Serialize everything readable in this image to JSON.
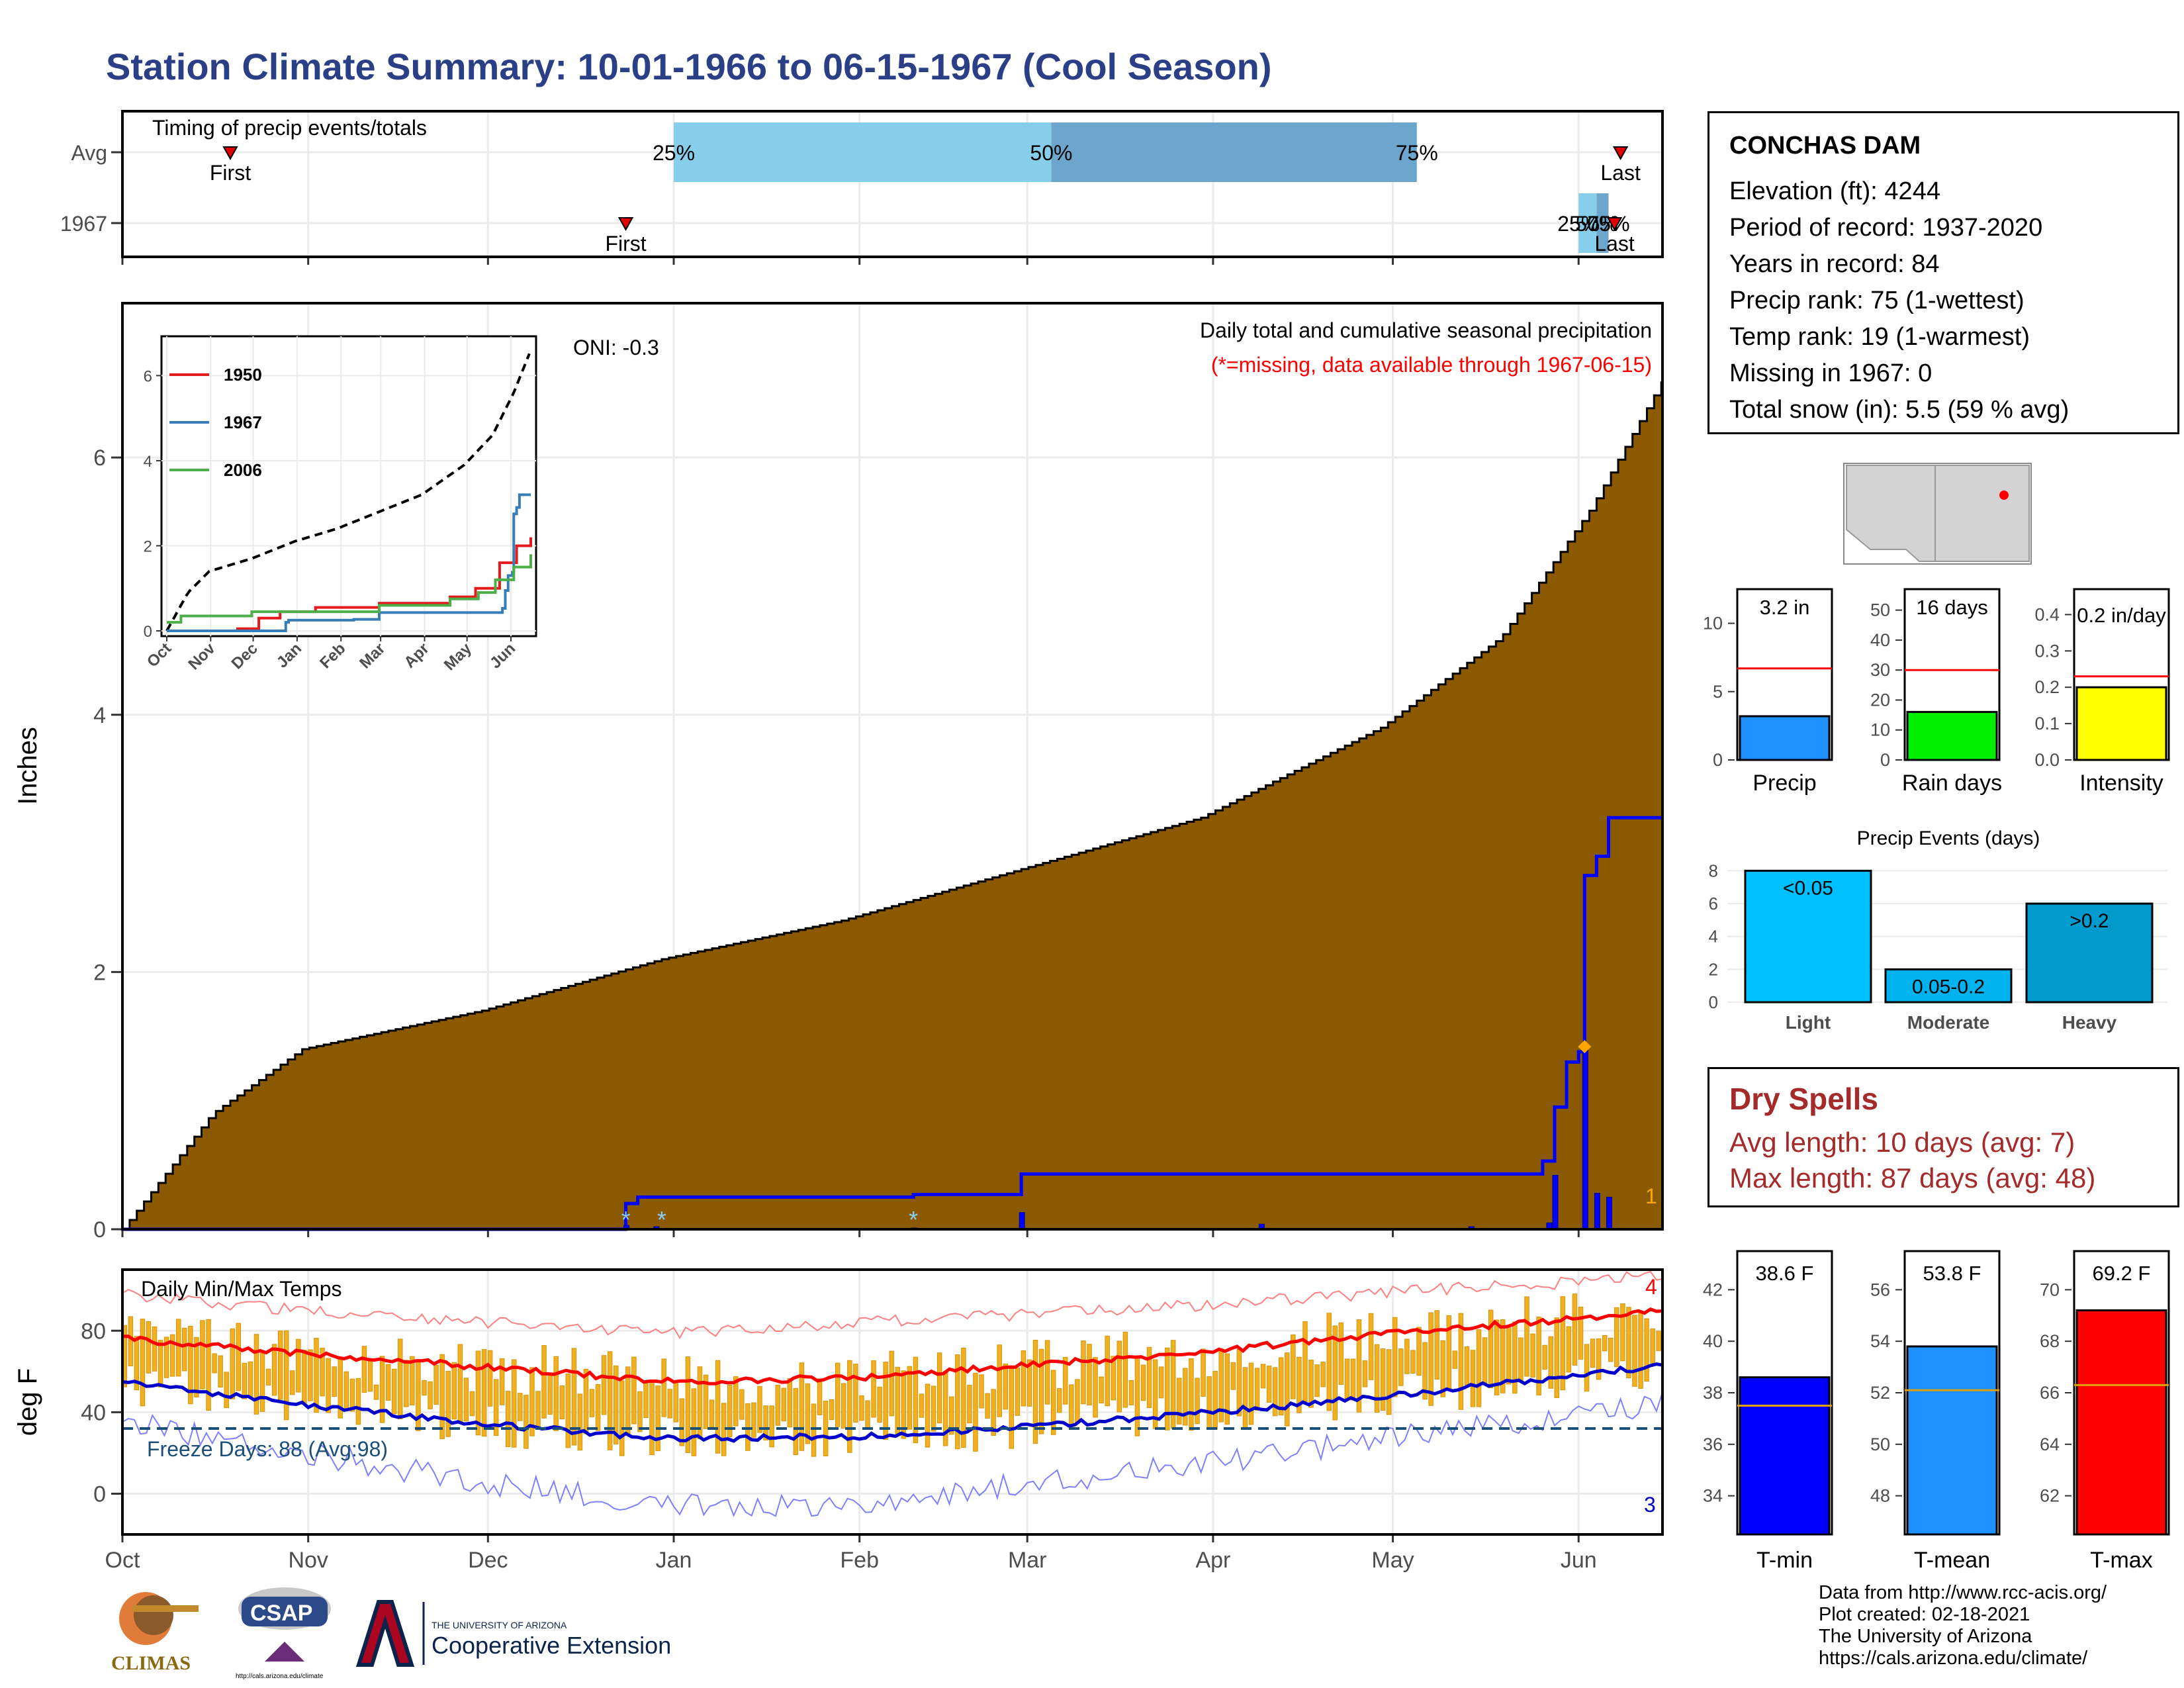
{
  "title": "Station Climate Summary: 10-01-1966 to 06-15-1967 (Cool Season)",
  "station": {
    "name": "CONCHAS DAM",
    "lines": [
      "Elevation (ft): 4244",
      "Period of record: 1937-2020",
      "Years in record: 84",
      "Precip rank: 75 (1-wettest)",
      "Temp rank: 19 (1-warmest)",
      "Missing in 1967: 0",
      "Total snow (in): 5.5 (59 % avg)"
    ]
  },
  "dry_spells": {
    "title": "Dry Spells",
    "avg_length": "Avg length: 10 days (avg: 7)",
    "max_length": "Max length: 87 days (avg: 48)"
  },
  "credits": [
    "Data from http://www.rcc-acis.org/",
    "Plot created: 02-18-2021",
    "The University of Arizona",
    "https://cals.arizona.edu/climate/"
  ],
  "logos": {
    "climas": "CLIMAS",
    "csap": "CSAP",
    "csap_url": "http://cals.arizona.edu/climate",
    "ua_small": "THE UNIVERSITY OF ARIZONA",
    "ua_big": "Cooperative Extension"
  },
  "colors": {
    "title": "#2b3f87",
    "cumulative_fill": "#8b5a00",
    "current_season": "#0000ff",
    "season_fill": "#dedede",
    "tmax_avg": "#ff0000",
    "tmin_avg": "#0000cd",
    "daily_bars": "#f0b020",
    "timing_early": "#87ceeb",
    "timing_late": "#6ca6cd",
    "dry_spells": "#a52a2a"
  },
  "chart_data": [
    {
      "id": "timing",
      "type": "bar",
      "title": "Timing of precip events/totals",
      "categories": [
        "Avg",
        "1967"
      ],
      "rows": [
        {
          "label": "Avg",
          "first": "1966-10-19",
          "p25": "1967-01-01",
          "p50": "1967-03-05",
          "p75": "1967-05-05",
          "last": "1967-06-08",
          "first_label": "First",
          "p25_label": "25%",
          "p50_label": "50%",
          "p75_label": "75%",
          "last_label": "Last"
        },
        {
          "label": "1967",
          "first": "1966-12-24",
          "p25": "1967-06-01",
          "p50": "1967-06-04",
          "p75": "1967-06-06",
          "last": "1967-06-07",
          "first_label": "First",
          "p25_label": "25%",
          "p50_label": "50%",
          "p75_label": "75%",
          "last_label": "Last"
        }
      ],
      "xlim": [
        "1966-10-01",
        "1967-06-15"
      ]
    },
    {
      "id": "precip",
      "type": "area",
      "title": "Daily total and cumulative seasonal precipitation",
      "subtitle": "(*=missing, data available through 1967-06-15)",
      "annotation": "ONI: -0.3",
      "ylabel": "Inches",
      "ylim": [
        0,
        7.2
      ],
      "yticks": [
        0,
        2,
        4,
        6
      ],
      "xticks": [
        "Oct",
        "Nov",
        "Dec",
        "Jan",
        "Feb",
        "Mar",
        "Apr",
        "May",
        "Jun"
      ],
      "avg_cumulative_end": 6.6,
      "series_1967_cumulative": {
        "name": "1967",
        "x": [
          "1966-10-01",
          "1966-12-24",
          "1966-12-26",
          "1967-02-10",
          "1967-02-28",
          "1967-05-26",
          "1967-05-28",
          "1967-05-30",
          "1967-06-01",
          "1967-06-02",
          "1967-06-04",
          "1967-06-06",
          "1967-06-15"
        ],
        "y": [
          0,
          0.2,
          0.25,
          0.27,
          0.43,
          0.53,
          0.95,
          1.3,
          1.38,
          2.75,
          2.9,
          3.2,
          3.2
        ]
      },
      "daily_bars": {
        "x": [
          "1966-12-24",
          "1966-12-29",
          "1967-02-10",
          "1967-02-28",
          "1967-04-09",
          "1967-05-14",
          "1967-05-27",
          "1967-05-28",
          "1967-06-02",
          "1967-06-04",
          "1967-06-06"
        ],
        "y": [
          0.03,
          0.02,
          0.01,
          0.13,
          0.04,
          0.02,
          0.05,
          0.42,
          1.42,
          0.28,
          0.25
        ]
      },
      "missing_markers": [
        "1966-12-24",
        "1966-12-30",
        "1967-02-10"
      ],
      "max_marker": {
        "x": "1967-06-02",
        "y": 1.42
      },
      "corner_label": "1"
    },
    {
      "id": "inset",
      "type": "line",
      "xticks": [
        "Oct",
        "Nov",
        "Dec",
        "Jan",
        "Feb",
        "Mar",
        "Apr",
        "May",
        "Jun"
      ],
      "ylim": [
        0,
        6.8
      ],
      "yticks": [
        0,
        2,
        4,
        6
      ],
      "series": [
        {
          "name": "1950",
          "color": "#e41a1c",
          "x": [
            0,
            50,
            65,
            80,
            105,
            150,
            200,
            218,
            235,
            247,
            257
          ],
          "y": [
            0,
            0.05,
            0.3,
            0.45,
            0.55,
            0.65,
            0.8,
            1.0,
            1.6,
            2.0,
            2.2
          ]
        },
        {
          "name": "1967",
          "color": "#377eb8",
          "x": [
            0,
            84,
            86,
            132,
            150,
            237,
            239,
            241,
            244,
            245,
            247,
            249,
            257
          ],
          "y": [
            0,
            0.2,
            0.25,
            0.27,
            0.43,
            0.53,
            0.95,
            1.3,
            1.38,
            2.75,
            2.9,
            3.2,
            3.2
          ]
        },
        {
          "name": "2006",
          "color": "#4daf4a",
          "x": [
            0,
            10,
            60,
            150,
            200,
            220,
            232,
            245,
            257
          ],
          "y": [
            0.2,
            0.35,
            0.45,
            0.6,
            0.75,
            0.9,
            1.2,
            1.5,
            1.8
          ]
        }
      ],
      "avg_x": [
        0,
        15,
        30,
        60,
        90,
        120,
        150,
        180,
        210,
        230,
        245,
        257
      ],
      "avg_y": [
        0,
        0.9,
        1.4,
        1.7,
        2.1,
        2.4,
        2.8,
        3.2,
        3.9,
        4.6,
        5.6,
        6.6
      ]
    },
    {
      "id": "temps",
      "type": "line",
      "title": "Daily Min/Max Temps",
      "ylabel": "deg F",
      "ylim": [
        -20,
        110
      ],
      "yticks": [
        0,
        40,
        80
      ],
      "xticks": [
        "Oct",
        "Nov",
        "Dec",
        "Jan",
        "Feb",
        "Mar",
        "Apr",
        "May",
        "Jun"
      ],
      "freeze_line": 32,
      "freeze_label": "Freeze Days: 88 (Avg:98)",
      "record_high_count": "4",
      "record_low_count": "3",
      "avg_tmax": {
        "x": [
          0,
          30,
          61,
          92,
          123,
          151,
          182,
          212,
          243,
          257
        ],
        "y": [
          76,
          69,
          62,
          55,
          57,
          63,
          70,
          79,
          86,
          90
        ]
      },
      "avg_tmin": {
        "x": [
          0,
          30,
          61,
          92,
          123,
          151,
          182,
          212,
          243,
          257
        ],
        "y": [
          55,
          44,
          34,
          27,
          28,
          33,
          40,
          48,
          58,
          63
        ]
      },
      "record_max": {
        "x": [
          0,
          30,
          61,
          92,
          123,
          151,
          182,
          212,
          243,
          257
        ],
        "y": [
          98,
          90,
          84,
          79,
          84,
          88,
          93,
          99,
          104,
          108
        ]
      },
      "record_min": {
        "x": [
          0,
          30,
          61,
          92,
          123,
          151,
          182,
          212,
          243,
          257
        ],
        "y": [
          35,
          20,
          5,
          -5,
          -5,
          5,
          15,
          28,
          38,
          45
        ]
      }
    },
    {
      "id": "summary_precip",
      "type": "bar",
      "categories": [
        "Precip",
        "Rain days",
        "Intensity"
      ],
      "panels": [
        {
          "name": "Precip",
          "value": 3.2,
          "avg": 6.7,
          "label": "3.2 in",
          "color": "#1e90ff",
          "ylim": [
            0,
            12.5
          ],
          "yticks": [
            0,
            5,
            10
          ]
        },
        {
          "name": "Rain days",
          "value": 16,
          "avg": 30,
          "label": "16 days",
          "color": "#00ee00",
          "ylim": [
            0,
            57
          ],
          "yticks": [
            0,
            10,
            20,
            30,
            40,
            50
          ]
        },
        {
          "name": "Intensity",
          "value": 0.2,
          "avg": 0.23,
          "label": "0.2 in/day",
          "color": "#ffff00",
          "ylim": [
            0,
            0.47
          ],
          "yticks": [
            0.0,
            0.1,
            0.2,
            0.3,
            0.4
          ]
        }
      ]
    },
    {
      "id": "precip_events",
      "type": "bar",
      "title": "Precip Events (days)",
      "categories": [
        "Light",
        "Moderate",
        "Heavy"
      ],
      "values": [
        8,
        2,
        6
      ],
      "labels": [
        "<0.05",
        "0.05-0.2",
        ">0.2"
      ],
      "colors": [
        "#00bfff",
        "#00b2ee",
        "#009acd"
      ],
      "ylim": [
        0,
        8.5
      ],
      "yticks": [
        0,
        2,
        4,
        6,
        8
      ]
    },
    {
      "id": "summary_temp",
      "type": "bar",
      "categories": [
        "T-min",
        "T-mean",
        "T-max"
      ],
      "panels": [
        {
          "name": "T-min",
          "value": 38.6,
          "avg": 37.5,
          "label": "38.6 F",
          "color": "#0000ff",
          "ylim": [
            32.5,
            43.5
          ],
          "yticks": [
            34,
            36,
            38,
            40,
            42
          ]
        },
        {
          "name": "T-mean",
          "value": 53.8,
          "avg": 52.1,
          "label": "53.8 F",
          "color": "#1e90ff",
          "ylim": [
            46.5,
            57.5
          ],
          "yticks": [
            48,
            50,
            52,
            54,
            56
          ]
        },
        {
          "name": "T-max",
          "value": 69.2,
          "avg": 66.3,
          "label": "69.2 F",
          "color": "#ff0000",
          "ylim": [
            60.5,
            71.5
          ],
          "yticks": [
            62,
            64,
            66,
            68,
            70
          ]
        }
      ]
    }
  ]
}
